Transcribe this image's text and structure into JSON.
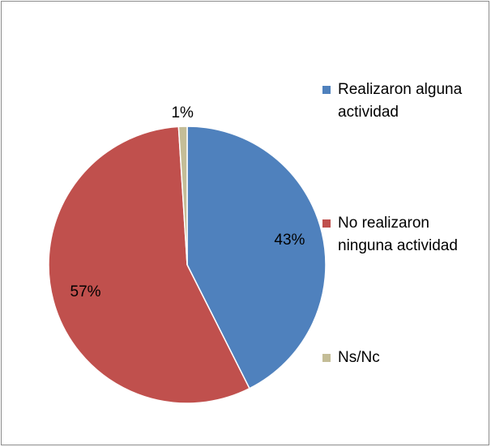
{
  "chart_data": {
    "type": "pie",
    "categories": [
      "Realizaron alguna actividad",
      "No realizaron ninguna actividad",
      "Ns/Nc"
    ],
    "values": [
      43,
      57,
      1
    ],
    "value_labels": [
      "43%",
      "57%",
      "1%"
    ],
    "colors": [
      "#4f81bd",
      "#c0504d",
      "#c4bd97"
    ],
    "legend": "right"
  }
}
